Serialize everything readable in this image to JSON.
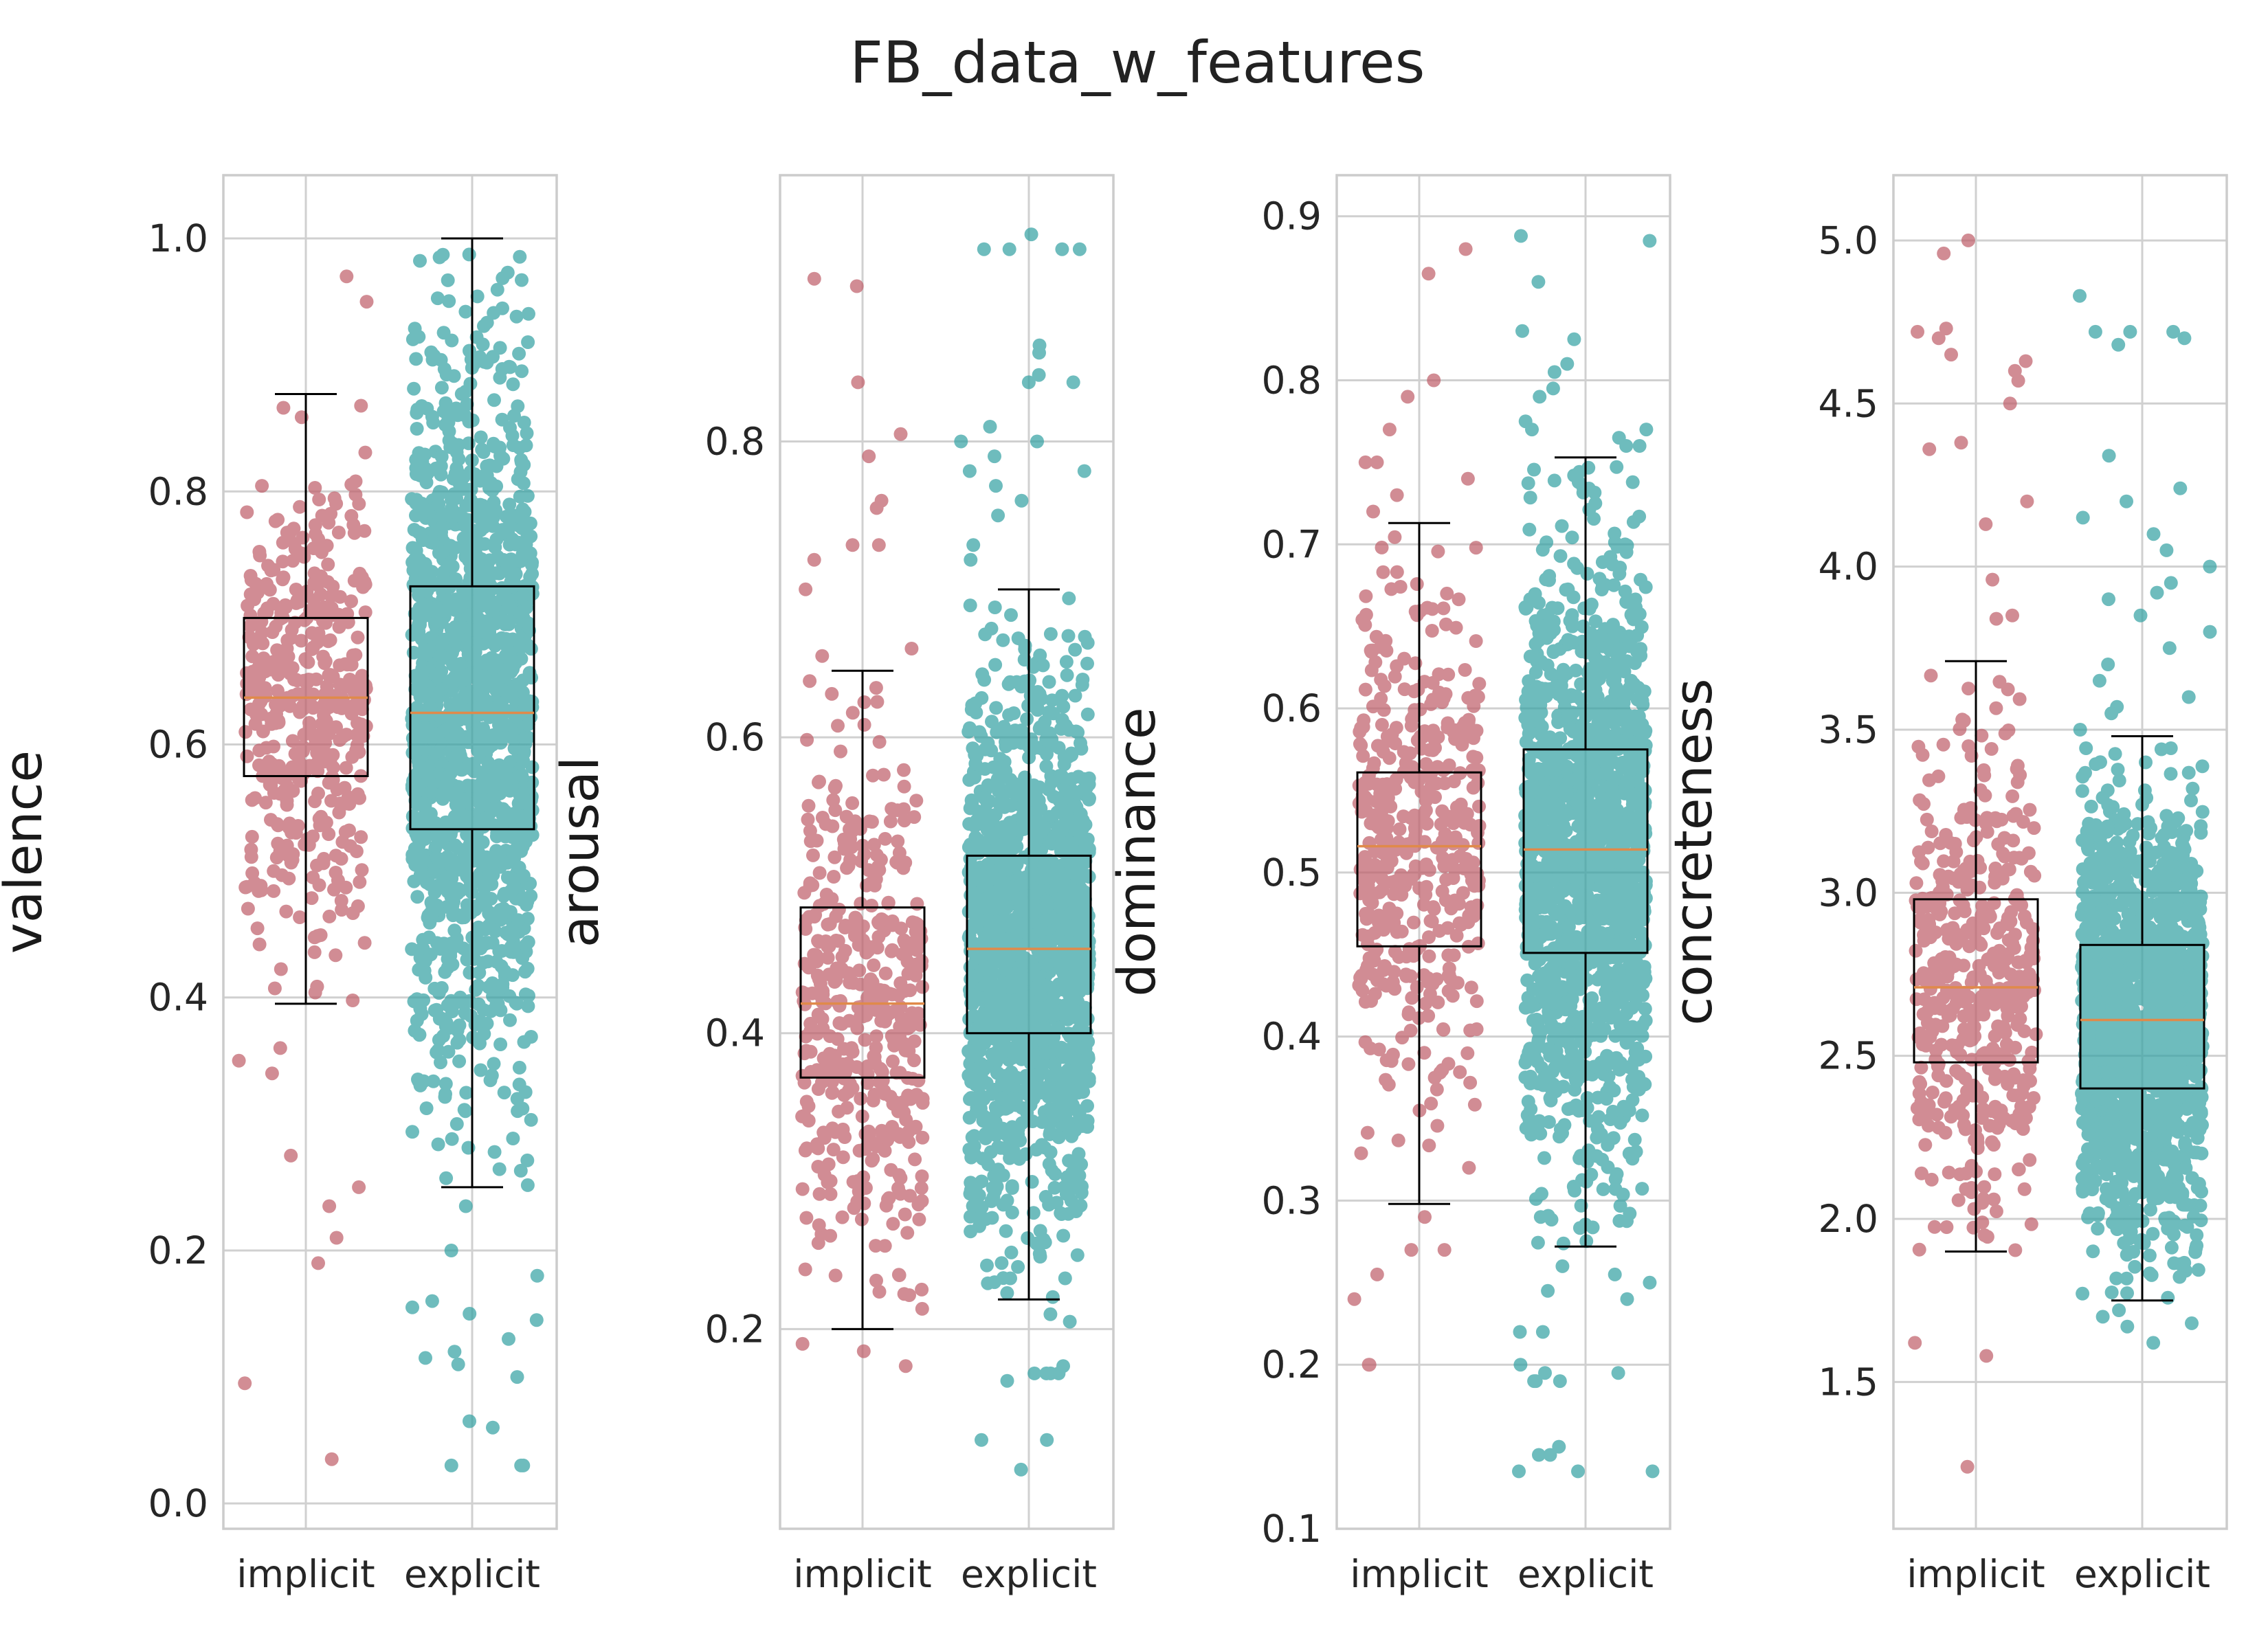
{
  "title": "FB_data_w_features",
  "colors": {
    "implicit": "#c0616b",
    "explicit": "#37a3a5",
    "median": "#e08a4a",
    "box": "#000000"
  },
  "chart_data": [
    {
      "type": "box-strip",
      "ylabel": "valence",
      "categories": [
        "implicit",
        "explicit"
      ],
      "ylim": [
        -0.02,
        1.05
      ],
      "yticks": [
        0.0,
        0.2,
        0.4,
        0.6,
        0.8,
        1.0
      ],
      "tick_labels": [
        "0.0",
        "0.2",
        "0.4",
        "0.6",
        "0.8",
        "1.0"
      ],
      "boxes": [
        {
          "name": "implicit",
          "whisker_low": 0.395,
          "q1": 0.575,
          "median": 0.637,
          "q3": 0.7,
          "whisker_high": 0.877,
          "n": 450,
          "outliers": [
            0.97,
            0.95,
            0.36,
            0.35,
            0.34,
            0.275,
            0.25,
            0.235,
            0.21,
            0.19,
            0.095,
            0.035
          ]
        },
        {
          "name": "explicit",
          "whisker_low": 0.25,
          "q1": 0.533,
          "median": 0.625,
          "q3": 0.725,
          "whisker_high": 1.0,
          "n": 1500,
          "outliers": [
            0.235,
            0.2,
            0.18,
            0.16,
            0.155,
            0.15,
            0.145,
            0.13,
            0.12,
            0.115,
            0.11,
            0.1,
            0.065,
            0.06,
            0.03,
            0.03,
            0.03
          ]
        }
      ]
    },
    {
      "type": "box-strip",
      "ylabel": "arousal",
      "categories": [
        "implicit",
        "explicit"
      ],
      "ylim": [
        0.065,
        0.98
      ],
      "yticks": [
        0.2,
        0.4,
        0.6,
        0.8
      ],
      "tick_labels": [
        "0.2",
        "0.4",
        "0.6",
        "0.8"
      ],
      "boxes": [
        {
          "name": "implicit",
          "whisker_low": 0.2,
          "q1": 0.37,
          "median": 0.42,
          "q3": 0.485,
          "whisker_high": 0.645,
          "n": 450,
          "outliers": [
            0.905,
            0.91,
            0.84,
            0.805,
            0.79,
            0.76,
            0.755,
            0.73,
            0.73,
            0.72,
            0.7,
            0.66,
            0.655,
            0.19,
            0.185,
            0.175
          ]
        },
        {
          "name": "explicit",
          "whisker_low": 0.22,
          "q1": 0.4,
          "median": 0.457,
          "q3": 0.52,
          "whisker_high": 0.7,
          "n": 1500,
          "outliers": [
            0.94,
            0.93,
            0.93,
            0.93,
            0.93,
            0.865,
            0.86,
            0.845,
            0.84,
            0.84,
            0.81,
            0.8,
            0.8,
            0.79,
            0.78,
            0.78,
            0.77,
            0.76,
            0.75,
            0.73,
            0.72,
            0.21,
            0.205,
            0.175,
            0.17,
            0.17,
            0.17,
            0.17,
            0.165,
            0.125,
            0.125,
            0.105
          ]
        }
      ]
    },
    {
      "type": "box-strip",
      "ylabel": "dominance",
      "categories": [
        "implicit",
        "explicit"
      ],
      "ylim": [
        0.1,
        0.925
      ],
      "yticks": [
        0.1,
        0.2,
        0.3,
        0.4,
        0.5,
        0.6,
        0.7,
        0.8,
        0.9
      ],
      "tick_labels": [
        "0.1",
        "0.2",
        "0.3",
        "0.4",
        "0.5",
        "0.6",
        "0.7",
        "0.8",
        "0.9"
      ],
      "boxes": [
        {
          "name": "implicit",
          "whisker_low": 0.298,
          "q1": 0.455,
          "median": 0.516,
          "q3": 0.561,
          "whisker_high": 0.713,
          "n": 450,
          "outliers": [
            0.88,
            0.865,
            0.8,
            0.79,
            0.77,
            0.75,
            0.75,
            0.74,
            0.73,
            0.72,
            0.29,
            0.27,
            0.27,
            0.255,
            0.24,
            0.2,
            0.2
          ]
        },
        {
          "name": "explicit",
          "whisker_low": 0.272,
          "q1": 0.451,
          "median": 0.514,
          "q3": 0.575,
          "whisker_high": 0.753,
          "n": 1500,
          "outliers": [
            0.888,
            0.885,
            0.86,
            0.83,
            0.825,
            0.81,
            0.805,
            0.795,
            0.79,
            0.775,
            0.77,
            0.77,
            0.765,
            0.76,
            0.76,
            0.26,
            0.255,
            0.25,
            0.245,
            0.24,
            0.22,
            0.22,
            0.2,
            0.195,
            0.195,
            0.19,
            0.19,
            0.19,
            0.15,
            0.145,
            0.145,
            0.135,
            0.135,
            0.135
          ]
        }
      ]
    },
    {
      "type": "box-strip",
      "ylabel": "concreteness",
      "categories": [
        "implicit",
        "explicit"
      ],
      "ylim": [
        1.05,
        5.2
      ],
      "yticks": [
        1.5,
        2.0,
        2.5,
        3.0,
        3.5,
        4.0,
        4.5,
        5.0
      ],
      "tick_labels": [
        "1.5",
        "2.0",
        "2.5",
        "3.0",
        "3.5",
        "4.0",
        "4.5",
        "5.0"
      ],
      "boxes": [
        {
          "name": "implicit",
          "whisker_low": 1.9,
          "q1": 2.48,
          "median": 2.71,
          "q3": 2.98,
          "whisker_high": 3.71,
          "n": 450,
          "outliers": [
            5.0,
            4.96,
            4.73,
            4.72,
            4.7,
            4.65,
            4.63,
            4.6,
            4.57,
            4.5,
            4.38,
            4.36,
            4.13,
            4.2,
            3.96,
            3.85,
            3.84,
            1.62,
            1.58,
            1.24
          ]
        },
        {
          "name": "explicit",
          "whisker_low": 1.75,
          "q1": 2.4,
          "median": 2.61,
          "q3": 2.84,
          "whisker_high": 3.48,
          "n": 1500,
          "outliers": [
            4.83,
            4.72,
            4.72,
            4.72,
            4.7,
            4.68,
            4.34,
            4.24,
            4.2,
            4.15,
            4.1,
            4.05,
            4.0,
            3.95,
            3.92,
            3.9,
            3.85,
            3.8,
            3.75,
            3.7,
            3.65,
            3.6,
            3.57,
            3.55,
            3.5,
            1.72,
            1.7,
            1.68,
            1.67,
            1.62
          ]
        }
      ]
    }
  ]
}
